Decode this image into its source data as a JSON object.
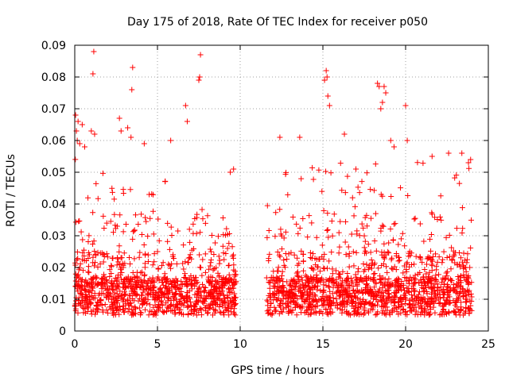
{
  "chart_data": {
    "type": "scatter",
    "title": "Day 175 of 2018, Rate Of TEC Index for receiver p050",
    "xlabel": "GPS time / hours",
    "ylabel": "ROTI / TECUs",
    "xlim": [
      0,
      25
    ],
    "ylim": [
      0,
      0.09
    ],
    "xticks": [
      0,
      5,
      10,
      15,
      20,
      25
    ],
    "xtick_labels": [
      "0",
      "5",
      "10",
      "15",
      "20",
      "25"
    ],
    "yticks": [
      0,
      0.01,
      0.02,
      0.03,
      0.04,
      0.05,
      0.06,
      0.07,
      0.08,
      0.09
    ],
    "ytick_labels": [
      "0",
      "0.01",
      "0.02",
      "0.03",
      "0.04",
      "0.05",
      "0.06",
      "0.07",
      "0.08",
      "0.09"
    ],
    "grid": true,
    "marker": "+",
    "color": "#ff0000",
    "series": [
      {
        "name": "ROTI",
        "segments": [
          [
            0.0,
            9.75
          ],
          [
            11.6,
            24.0
          ]
        ],
        "typical_range": [
          0.005,
          0.02
        ],
        "notable_points": [
          [
            0.05,
            0.068
          ],
          [
            0.1,
            0.063
          ],
          [
            0.15,
            0.06
          ],
          [
            0.2,
            0.066
          ],
          [
            0.3,
            0.059
          ],
          [
            0.45,
            0.065
          ],
          [
            0.6,
            0.058
          ],
          [
            1.0,
            0.063
          ],
          [
            1.15,
            0.088
          ],
          [
            1.1,
            0.081
          ],
          [
            1.2,
            0.062
          ],
          [
            2.7,
            0.067
          ],
          [
            2.8,
            0.063
          ],
          [
            3.2,
            0.064
          ],
          [
            3.4,
            0.061
          ],
          [
            3.5,
            0.083
          ],
          [
            3.45,
            0.076
          ],
          [
            4.2,
            0.059
          ],
          [
            5.8,
            0.06
          ],
          [
            6.7,
            0.071
          ],
          [
            6.8,
            0.066
          ],
          [
            7.5,
            0.079
          ],
          [
            7.6,
            0.087
          ],
          [
            7.55,
            0.08
          ],
          [
            9.6,
            0.051
          ],
          [
            9.4,
            0.05
          ],
          [
            12.4,
            0.061
          ],
          [
            13.6,
            0.061
          ],
          [
            15.1,
            0.079
          ],
          [
            15.2,
            0.082
          ],
          [
            15.25,
            0.08
          ],
          [
            15.3,
            0.074
          ],
          [
            15.4,
            0.071
          ],
          [
            16.3,
            0.062
          ],
          [
            18.3,
            0.078
          ],
          [
            18.4,
            0.077
          ],
          [
            18.5,
            0.07
          ],
          [
            18.6,
            0.072
          ],
          [
            18.7,
            0.077
          ],
          [
            18.8,
            0.075
          ],
          [
            19.1,
            0.06
          ],
          [
            19.3,
            0.058
          ],
          [
            20.0,
            0.071
          ],
          [
            20.1,
            0.06
          ],
          [
            21.6,
            0.055
          ],
          [
            22.6,
            0.056
          ],
          [
            23.4,
            0.056
          ],
          [
            23.8,
            0.053
          ]
        ]
      }
    ]
  }
}
